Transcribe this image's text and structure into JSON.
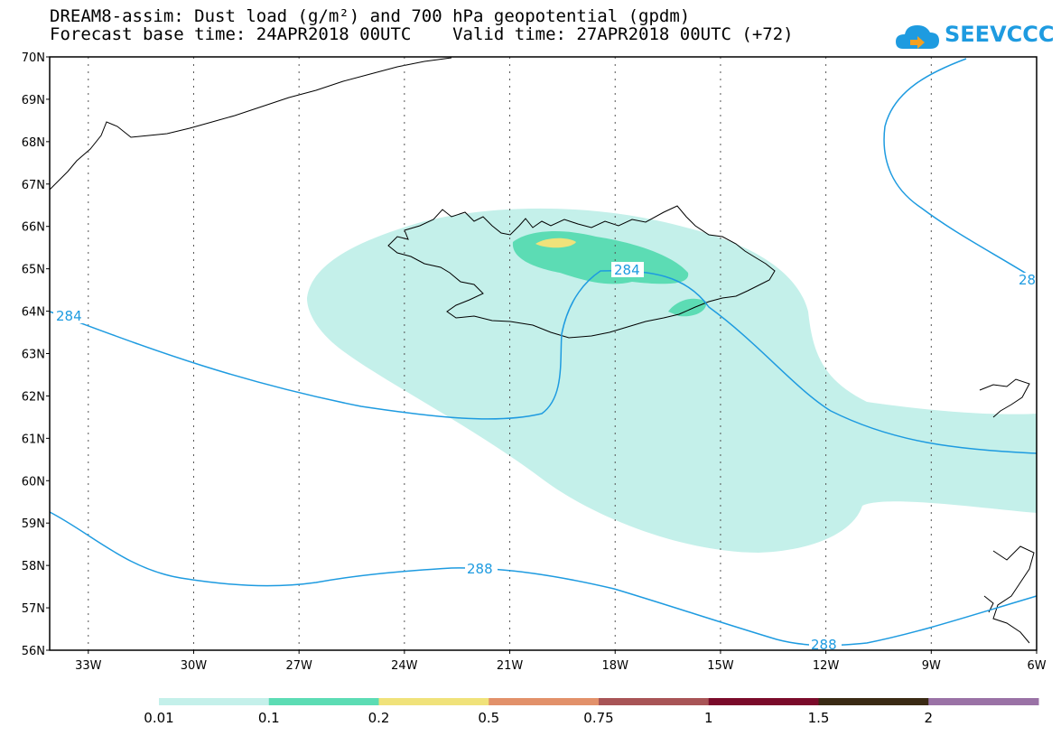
{
  "title": {
    "line1": "DREAM8-assim: Dust load (g/m²) and 700 hPa geopotential (gpdm)",
    "line2": "Forecast base time: 24APR2018 00UTC    Valid time: 27APR2018 00UTC (+72)"
  },
  "logo": {
    "text": "SEEVCCC",
    "icon": "cloud-icon",
    "color": "#1e9be0"
  },
  "map": {
    "lat_labels": [
      "70N",
      "69N",
      "68N",
      "67N",
      "66N",
      "65N",
      "64N",
      "63N",
      "62N",
      "61N",
      "60N",
      "59N",
      "58N",
      "57N",
      "56N"
    ],
    "lon_labels": [
      "33W",
      "30W",
      "27W",
      "24W",
      "21W",
      "18W",
      "15W",
      "12W",
      "9W",
      "6W"
    ],
    "lat_range": [
      56,
      70
    ],
    "lon_range": [
      -34.1,
      -6
    ],
    "grid": true,
    "contour_color": "#1e9be0",
    "contour_labels": [
      "284",
      "284",
      "28",
      "288",
      "288"
    ]
  },
  "colorbar": {
    "labels": [
      "0.01",
      "0.1",
      "0.2",
      "0.5",
      "0.75",
      "1",
      "1.5",
      "2"
    ],
    "colors": [
      "#c4f0ea",
      "#5cdcb4",
      "#f0e27a",
      "#e2916a",
      "#a85456",
      "#7a0a2a",
      "#3a2a14",
      "#9a72a6"
    ]
  }
}
